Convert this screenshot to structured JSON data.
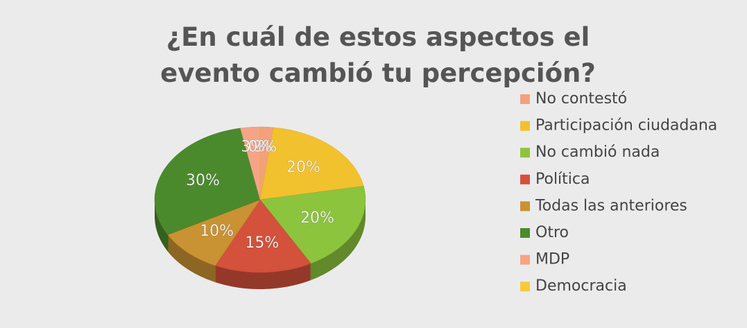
{
  "chart_data": {
    "type": "pie",
    "title": "¿En cuál de estos aspectos el evento cambió tu percepción?",
    "categories": [
      "No contestó",
      "Participación ciudadana",
      "No cambió nada",
      "Política",
      "Todas las anteriores",
      "Otro",
      "MDP",
      "Democracia"
    ],
    "values": [
      2,
      20,
      20,
      15,
      10,
      30,
      3,
      0
    ],
    "value_labels": [
      "2%",
      "20%",
      "20%",
      "15%",
      "10%",
      "30%",
      "3%",
      "0%"
    ],
    "colors": [
      "#f4a07e",
      "#f2c12e",
      "#8cc43e",
      "#d4513c",
      "#c99232",
      "#4b8a2c",
      "#f6a486",
      "#f7ca3a"
    ],
    "legend": "right"
  }
}
